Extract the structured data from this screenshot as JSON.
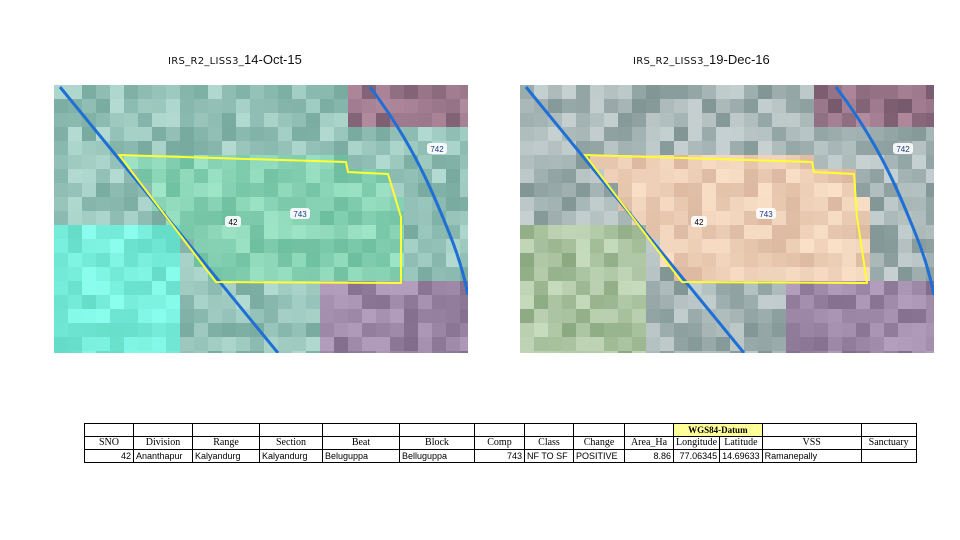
{
  "left_panel": {
    "title_prefix": "IRS_R2_LISS3_",
    "title_date": "14-Oct-15",
    "labels": {
      "compartment_743": "743",
      "compartment_742": "742",
      "compartment_42": "42"
    }
  },
  "right_panel": {
    "title_prefix": "IRS_R2_LISS3_",
    "title_date": "19-Dec-16",
    "labels": {
      "compartment_743": "743",
      "compartment_742": "742",
      "compartment_42": "42"
    }
  },
  "colors": {
    "boundary": "#ffff33",
    "road": "#1e6fd6"
  },
  "table": {
    "group_header": "WGS84-Datum",
    "headers": [
      "SNO",
      "Division",
      "Range",
      "Section",
      "Beat",
      "Block",
      "Comp",
      "Class",
      "Change",
      "Area_Ha",
      "Longitude",
      "Latitude",
      "VSS",
      "Sanctuary"
    ],
    "row": {
      "sno": "42",
      "division": "Ananthapur",
      "range": "Kalyandurg",
      "section": "Kalyandurg",
      "beat": "Beluguppa",
      "block": "Belluguppa",
      "comp": "743",
      "class": "NF TO SF",
      "change": "POSITIVE",
      "area_ha": "8.86",
      "longitude": "77.06345",
      "latitude": "14.69633",
      "vss": "Ramanepally",
      "sanctuary": ""
    }
  }
}
